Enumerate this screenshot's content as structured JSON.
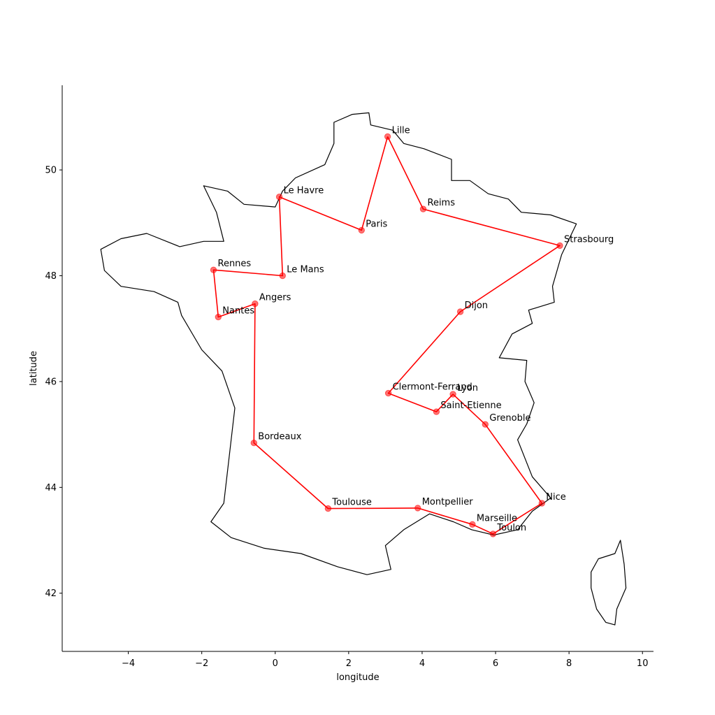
{
  "colors": {
    "route": "#ff0000",
    "marker": "#ff0000",
    "coastline": "#000000",
    "axis": "#000000",
    "background": "#ffffff"
  },
  "chart_data": {
    "type": "line",
    "title": "",
    "xlabel": "longitude",
    "ylabel": "latitude",
    "xlim": [
      -5.8,
      10.3
    ],
    "ylim": [
      40.9,
      51.6
    ],
    "grid": false,
    "legend": "none",
    "x_ticks": [
      {
        "value": -4,
        "label": "−4"
      },
      {
        "value": -2,
        "label": "−2"
      },
      {
        "value": 0,
        "label": "0"
      },
      {
        "value": 2,
        "label": "2"
      },
      {
        "value": 4,
        "label": "4"
      },
      {
        "value": 6,
        "label": "6"
      },
      {
        "value": 8,
        "label": "8"
      },
      {
        "value": 10,
        "label": "10"
      }
    ],
    "y_ticks": [
      {
        "value": 42,
        "label": "42"
      },
      {
        "value": 44,
        "label": "44"
      },
      {
        "value": 46,
        "label": "46"
      },
      {
        "value": 48,
        "label": "48"
      },
      {
        "value": 50,
        "label": "50"
      }
    ],
    "route": [
      {
        "name": "Lille",
        "lon": 3.06,
        "lat": 50.63
      },
      {
        "name": "Reims",
        "lon": 4.03,
        "lat": 49.26
      },
      {
        "name": "Strasbourg",
        "lon": 7.75,
        "lat": 48.57
      },
      {
        "name": "Dijon",
        "lon": 5.04,
        "lat": 47.32
      },
      {
        "name": "Clermont-Ferrand",
        "lon": 3.08,
        "lat": 45.78
      },
      {
        "name": "Saint-Etienne",
        "lon": 4.39,
        "lat": 45.43
      },
      {
        "name": "Lyon",
        "lon": 4.84,
        "lat": 45.76
      },
      {
        "name": "Grenoble",
        "lon": 5.72,
        "lat": 45.19
      },
      {
        "name": "Nice",
        "lon": 7.26,
        "lat": 43.7
      },
      {
        "name": "Toulon",
        "lon": 5.93,
        "lat": 43.12
      },
      {
        "name": "Marseille",
        "lon": 5.37,
        "lat": 43.3
      },
      {
        "name": "Montpellier",
        "lon": 3.88,
        "lat": 43.61
      },
      {
        "name": "Toulouse",
        "lon": 1.44,
        "lat": 43.6
      },
      {
        "name": "Bordeaux",
        "lon": -0.58,
        "lat": 44.84
      },
      {
        "name": "Angers",
        "lon": -0.55,
        "lat": 47.47
      },
      {
        "name": "Nantes",
        "lon": -1.55,
        "lat": 47.22
      },
      {
        "name": "Rennes",
        "lon": -1.68,
        "lat": 48.11
      },
      {
        "name": "Le Mans",
        "lon": 0.2,
        "lat": 48.0
      },
      {
        "name": "Le Havre",
        "lon": 0.11,
        "lat": 49.49
      },
      {
        "name": "Paris",
        "lon": 2.35,
        "lat": 48.86
      },
      {
        "name": "Lille",
        "lon": 3.06,
        "lat": 50.63
      }
    ],
    "cities": [
      {
        "name": "Lille",
        "lon": 3.06,
        "lat": 50.63
      },
      {
        "name": "Reims",
        "lon": 4.03,
        "lat": 49.26
      },
      {
        "name": "Strasbourg",
        "lon": 7.75,
        "lat": 48.57
      },
      {
        "name": "Dijon",
        "lon": 5.04,
        "lat": 47.32
      },
      {
        "name": "Clermont-Ferrand",
        "lon": 3.08,
        "lat": 45.78
      },
      {
        "name": "Lyon",
        "lon": 4.84,
        "lat": 45.76
      },
      {
        "name": "Saint-Etienne",
        "lon": 4.39,
        "lat": 45.43
      },
      {
        "name": "Grenoble",
        "lon": 5.72,
        "lat": 45.19
      },
      {
        "name": "Nice",
        "lon": 7.26,
        "lat": 43.7
      },
      {
        "name": "Marseille",
        "lon": 5.37,
        "lat": 43.3
      },
      {
        "name": "Toulon",
        "lon": 5.93,
        "lat": 43.12
      },
      {
        "name": "Montpellier",
        "lon": 3.88,
        "lat": 43.61
      },
      {
        "name": "Toulouse",
        "lon": 1.44,
        "lat": 43.6
      },
      {
        "name": "Bordeaux",
        "lon": -0.58,
        "lat": 44.84
      },
      {
        "name": "Angers",
        "lon": -0.55,
        "lat": 47.47
      },
      {
        "name": "Nantes",
        "lon": -1.55,
        "lat": 47.22
      },
      {
        "name": "Rennes",
        "lon": -1.68,
        "lat": 48.11
      },
      {
        "name": "Le Mans",
        "lon": 0.2,
        "lat": 48.0
      },
      {
        "name": "Le Havre",
        "lon": 0.11,
        "lat": 49.49
      },
      {
        "name": "Paris",
        "lon": 2.35,
        "lat": 48.86
      }
    ],
    "mainland_outline": [
      [
        1.6,
        50.9
      ],
      [
        2.1,
        51.05
      ],
      [
        2.55,
        51.08
      ],
      [
        2.6,
        50.85
      ],
      [
        3.2,
        50.75
      ],
      [
        3.5,
        50.5
      ],
      [
        4.05,
        50.4
      ],
      [
        4.8,
        50.2
      ],
      [
        4.8,
        49.8
      ],
      [
        5.3,
        49.8
      ],
      [
        5.8,
        49.55
      ],
      [
        6.35,
        49.45
      ],
      [
        6.7,
        49.2
      ],
      [
        7.5,
        49.15
      ],
      [
        8.2,
        48.98
      ],
      [
        7.8,
        48.4
      ],
      [
        7.55,
        47.8
      ],
      [
        7.6,
        47.5
      ],
      [
        6.9,
        47.35
      ],
      [
        7.0,
        47.1
      ],
      [
        6.45,
        46.9
      ],
      [
        6.1,
        46.45
      ],
      [
        6.85,
        46.4
      ],
      [
        6.8,
        46.0
      ],
      [
        7.05,
        45.6
      ],
      [
        6.85,
        45.2
      ],
      [
        6.6,
        44.9
      ],
      [
        7.0,
        44.2
      ],
      [
        7.5,
        43.8
      ],
      [
        7.0,
        43.55
      ],
      [
        6.6,
        43.2
      ],
      [
        5.95,
        43.1
      ],
      [
        5.35,
        43.2
      ],
      [
        4.85,
        43.35
      ],
      [
        4.2,
        43.5
      ],
      [
        3.5,
        43.2
      ],
      [
        3.0,
        42.9
      ],
      [
        3.15,
        42.45
      ],
      [
        2.5,
        42.35
      ],
      [
        1.7,
        42.5
      ],
      [
        0.7,
        42.75
      ],
      [
        -0.3,
        42.85
      ],
      [
        -1.2,
        43.05
      ],
      [
        -1.75,
        43.35
      ],
      [
        -1.4,
        43.7
      ],
      [
        -1.25,
        44.6
      ],
      [
        -1.1,
        45.5
      ],
      [
        -1.45,
        46.2
      ],
      [
        -2.0,
        46.6
      ],
      [
        -2.55,
        47.25
      ],
      [
        -2.65,
        47.5
      ],
      [
        -3.3,
        47.7
      ],
      [
        -4.2,
        47.8
      ],
      [
        -4.65,
        48.1
      ],
      [
        -4.75,
        48.5
      ],
      [
        -4.2,
        48.7
      ],
      [
        -3.5,
        48.8
      ],
      [
        -2.6,
        48.55
      ],
      [
        -1.95,
        48.65
      ],
      [
        -1.4,
        48.65
      ],
      [
        -1.6,
        49.2
      ],
      [
        -1.95,
        49.7
      ],
      [
        -1.3,
        49.6
      ],
      [
        -0.85,
        49.35
      ],
      [
        0.0,
        49.3
      ],
      [
        0.2,
        49.6
      ],
      [
        0.55,
        49.85
      ],
      [
        1.35,
        50.1
      ],
      [
        1.6,
        50.5
      ],
      [
        1.6,
        50.9
      ]
    ],
    "corsica_outline": [
      [
        9.4,
        43.0
      ],
      [
        9.5,
        42.55
      ],
      [
        9.55,
        42.1
      ],
      [
        9.3,
        41.7
      ],
      [
        9.25,
        41.4
      ],
      [
        9.0,
        41.45
      ],
      [
        8.75,
        41.7
      ],
      [
        8.6,
        42.1
      ],
      [
        8.6,
        42.4
      ],
      [
        8.8,
        42.65
      ],
      [
        9.25,
        42.75
      ],
      [
        9.4,
        43.0
      ]
    ]
  },
  "labels": {
    "xlabel": "longitude",
    "ylabel": "latitude",
    "xtick_0": "−4",
    "xtick_1": "−2",
    "xtick_2": "0",
    "xtick_3": "2",
    "xtick_4": "4",
    "xtick_5": "6",
    "xtick_6": "8",
    "xtick_7": "10",
    "ytick_0": "42",
    "ytick_1": "44",
    "ytick_2": "46",
    "ytick_3": "48",
    "ytick_4": "50",
    "city_0": "Lille",
    "city_1": "Reims",
    "city_2": "Strasbourg",
    "city_3": "Dijon",
    "city_4": "Clermont-Ferrand",
    "city_5": "Lyon",
    "city_6": "Saint-Etienne",
    "city_7": "Grenoble",
    "city_8": "Nice",
    "city_9": "Marseille",
    "city_10": "Toulon",
    "city_11": "Montpellier",
    "city_12": "Toulouse",
    "city_13": "Bordeaux",
    "city_14": "Angers",
    "city_15": "Nantes",
    "city_16": "Rennes",
    "city_17": "Le Mans",
    "city_18": "Le Havre",
    "city_19": "Paris"
  }
}
